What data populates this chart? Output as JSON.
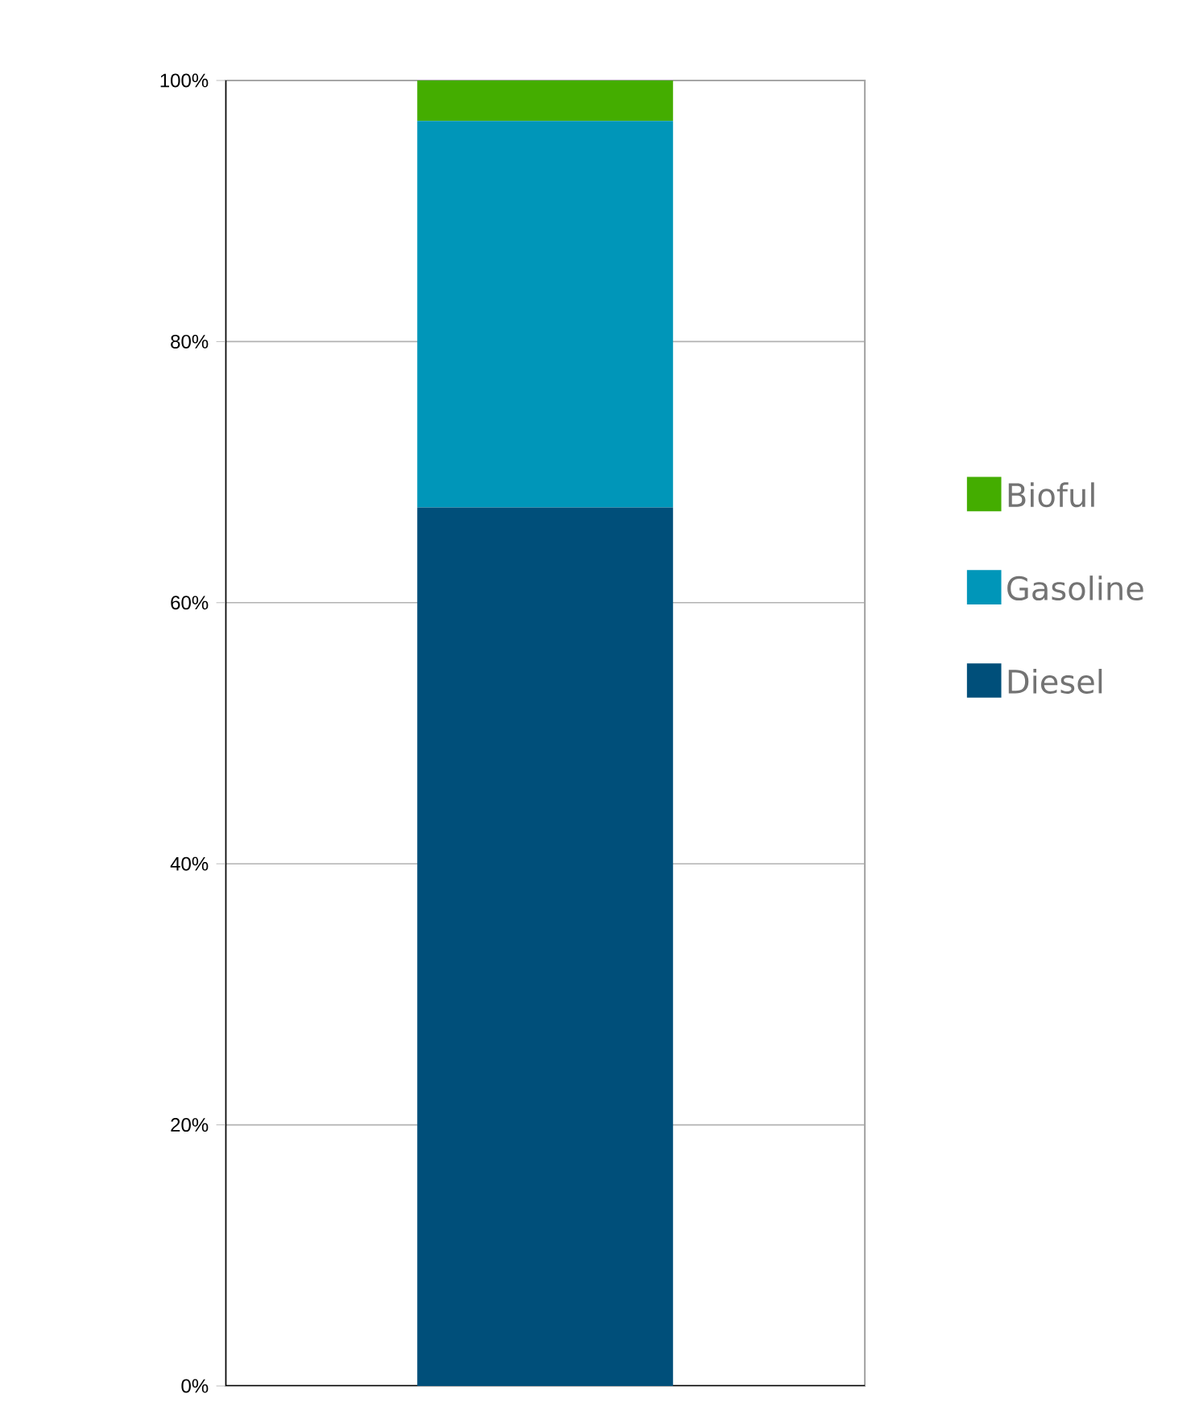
{
  "chart_data": {
    "type": "bar",
    "stacked": true,
    "categories": [
      null
    ],
    "series": [
      {
        "name": "Diesel",
        "color": "#004f7a",
        "values": [
          67.3
        ]
      },
      {
        "name": "Gasoline",
        "color": "#0096b9",
        "values": [
          29.6
        ]
      },
      {
        "name": "Bioful",
        "color": "#44ad00",
        "values": [
          3.1
        ]
      }
    ],
    "ylim": [
      0,
      100
    ],
    "yticks": [
      {
        "value": 0,
        "label": "0%"
      },
      {
        "value": 20,
        "label": "20%"
      },
      {
        "value": 40,
        "label": "40%"
      },
      {
        "value": 60,
        "label": "60%"
      },
      {
        "value": 80,
        "label": "80%"
      },
      {
        "value": 100,
        "label": "100%"
      }
    ],
    "grid": "y",
    "legend": "right"
  }
}
